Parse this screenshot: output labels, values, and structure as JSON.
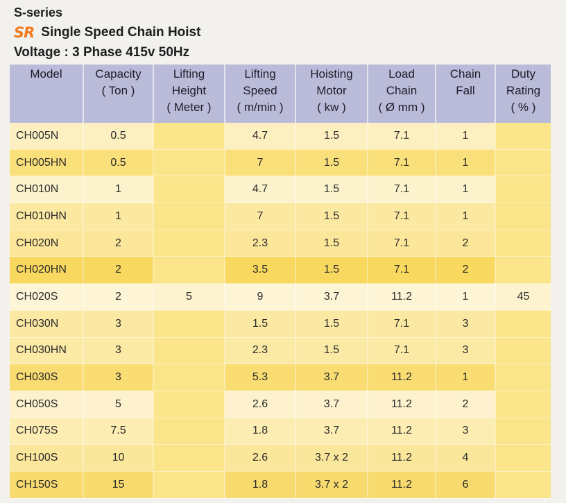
{
  "header": {
    "series": "S-series",
    "logo_text": "SR",
    "title": "Single Speed Chain Hoist",
    "voltage": "Voltage : 3 Phase 415v 50Hz"
  },
  "colors": {
    "header_bg": "#b9bbd9",
    "logo": "#f07a1e",
    "row_yellow": "#f9e07a",
    "row_pale": "#fcf0c0"
  },
  "table": {
    "columns": [
      {
        "lines": [
          "Model",
          ""
        ],
        "unit": ""
      },
      {
        "lines": [
          "Capacity",
          ""
        ],
        "unit": "( Ton )"
      },
      {
        "lines": [
          "Lifting",
          "Height"
        ],
        "unit": "( Meter )"
      },
      {
        "lines": [
          "Lifting",
          "Speed"
        ],
        "unit": "( m/min )"
      },
      {
        "lines": [
          "Hoisting",
          "Motor"
        ],
        "unit": "( kw )"
      },
      {
        "lines": [
          "Load",
          "Chain"
        ],
        "unit": "( Ø mm )"
      },
      {
        "lines": [
          "Chain",
          ""
        ],
        "unit": "Fall"
      },
      {
        "lines": [
          "Duty",
          "Rating"
        ],
        "unit": "( % )"
      }
    ],
    "rows": [
      [
        "CH005N",
        "0.5",
        "",
        "4.7",
        "1.5",
        "7.1",
        "1",
        ""
      ],
      [
        "CH005HN",
        "0.5",
        "",
        "7",
        "1.5",
        "7.1",
        "1",
        ""
      ],
      [
        "CH010N",
        "1",
        "",
        "4.7",
        "1.5",
        "7.1",
        "1",
        ""
      ],
      [
        "CH010HN",
        "1",
        "",
        "7",
        "1.5",
        "7.1",
        "1",
        ""
      ],
      [
        "CH020N",
        "2",
        "",
        "2.3",
        "1.5",
        "7.1",
        "2",
        ""
      ],
      [
        "CH020HN",
        "2",
        "",
        "3.5",
        "1.5",
        "7.1",
        "2",
        ""
      ],
      [
        "CH020S",
        "2",
        "5",
        "9",
        "3.7",
        "11.2",
        "1",
        "45"
      ],
      [
        "CH030N",
        "3",
        "",
        "1.5",
        "1.5",
        "7.1",
        "3",
        ""
      ],
      [
        "CH030HN",
        "3",
        "",
        "2.3",
        "1.5",
        "7.1",
        "3",
        ""
      ],
      [
        "CH030S",
        "3",
        "",
        "5.3",
        "3.7",
        "11.2",
        "1",
        ""
      ],
      [
        "CH050S",
        "5",
        "",
        "2.6",
        "3.7",
        "11.2",
        "2",
        ""
      ],
      [
        "CH075S",
        "7.5",
        "",
        "1.8",
        "3.7",
        "11.2",
        "3",
        ""
      ],
      [
        "CH100S",
        "10",
        "",
        "2.6",
        "3.7 x 2",
        "11.2",
        "4",
        ""
      ],
      [
        "CH150S",
        "15",
        "",
        "1.8",
        "3.7 x 2",
        "11.2",
        "6",
        ""
      ]
    ]
  }
}
